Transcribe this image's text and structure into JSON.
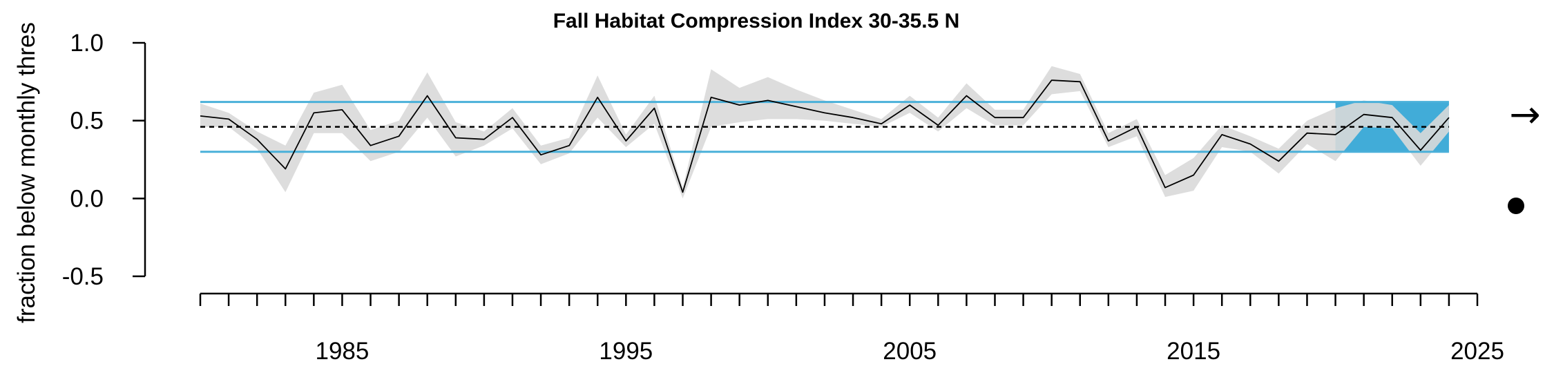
{
  "chart_data": {
    "type": "line",
    "title": "Fall Habitat Compression Index 30-35.5 N",
    "ylabel": "fraction below monthly thres",
    "xlabel": "",
    "xlim": [
      1979.5,
      2025
    ],
    "ylim": [
      -0.5,
      1.0
    ],
    "yticks": [
      -0.5,
      0.0,
      0.5,
      1.0
    ],
    "ytick_labels": [
      "-0.5",
      "0.0",
      "0.5",
      "1.0"
    ],
    "xticks_labeled": [
      1985,
      1995,
      2005,
      2015,
      2025
    ],
    "xtick_labels": [
      "1985",
      "1995",
      "2005",
      "2015",
      "2025"
    ],
    "xticks_minor_every": 1,
    "x": [
      1980,
      1981,
      1982,
      1983,
      1984,
      1985,
      1986,
      1987,
      1988,
      1989,
      1990,
      1991,
      1992,
      1993,
      1994,
      1995,
      1996,
      1997,
      1998,
      1999,
      2000,
      2001,
      2002,
      2003,
      2004,
      2005,
      2006,
      2007,
      2008,
      2009,
      2010,
      2011,
      2012,
      2013,
      2014,
      2015,
      2016,
      2017,
      2018,
      2019,
      2020,
      2021,
      2022,
      2023,
      2024
    ],
    "series": [
      {
        "values": [
          0.53,
          0.51,
          0.38,
          0.19,
          0.55,
          0.57,
          0.34,
          0.4,
          0.66,
          0.39,
          0.38,
          0.52,
          0.28,
          0.34,
          0.65,
          0.37,
          0.58,
          0.04,
          0.65,
          0.6,
          0.63,
          0.59,
          0.55,
          0.52,
          0.48,
          0.6,
          0.47,
          0.66,
          0.52,
          0.52,
          0.76,
          0.75,
          0.37,
          0.46,
          0.07,
          0.15,
          0.41,
          0.35,
          0.24,
          0.42,
          0.41,
          0.54,
          0.52,
          0.31,
          0.52
        ],
        "lower": [
          0.46,
          0.46,
          0.32,
          0.04,
          0.42,
          0.42,
          0.24,
          0.3,
          0.52,
          0.27,
          0.34,
          0.45,
          0.22,
          0.29,
          0.52,
          0.33,
          0.48,
          0.0,
          0.46,
          0.49,
          0.51,
          0.51,
          0.5,
          0.48,
          0.46,
          0.55,
          0.43,
          0.58,
          0.47,
          0.47,
          0.67,
          0.69,
          0.33,
          0.4,
          0.01,
          0.05,
          0.33,
          0.3,
          0.16,
          0.35,
          0.24,
          0.46,
          0.45,
          0.21,
          0.43
        ],
        "upper": [
          0.61,
          0.55,
          0.43,
          0.34,
          0.68,
          0.73,
          0.44,
          0.5,
          0.81,
          0.49,
          0.43,
          0.58,
          0.34,
          0.39,
          0.79,
          0.41,
          0.66,
          0.07,
          0.83,
          0.71,
          0.78,
          0.7,
          0.63,
          0.57,
          0.51,
          0.66,
          0.52,
          0.74,
          0.57,
          0.57,
          0.85,
          0.8,
          0.42,
          0.51,
          0.15,
          0.26,
          0.47,
          0.4,
          0.32,
          0.5,
          0.58,
          0.63,
          0.6,
          0.42,
          0.6
        ]
      }
    ],
    "mean": 0.46,
    "upper_sd": 0.62,
    "lower_sd": 0.3,
    "recent_window": [
      2020,
      2024
    ],
    "trend_symbol": "→",
    "colors": {
      "line": "#000000",
      "ci_band": "#d9d9d9",
      "sd_lines": "#4ab0d9",
      "recent_box": "#41acd8",
      "mean_line": "#000000",
      "axis": "#000000"
    }
  }
}
